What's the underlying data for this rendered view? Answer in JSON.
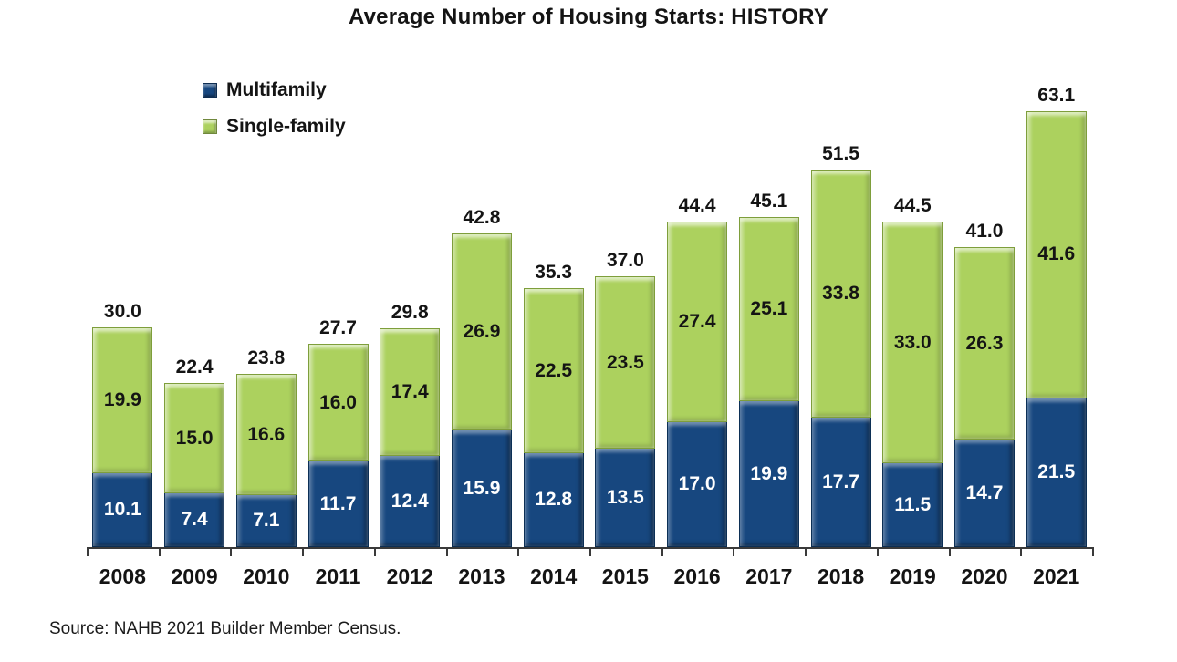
{
  "chart_data": {
    "type": "bar",
    "stacked": true,
    "title": "Average Number of Housing Starts: HISTORY",
    "categories": [
      "2008",
      "2009",
      "2010",
      "2011",
      "2012",
      "2013",
      "2014",
      "2015",
      "2016",
      "2017",
      "2018",
      "2019",
      "2020",
      "2021"
    ],
    "series": [
      {
        "name": "Multifamily",
        "color": "#17477F",
        "label_color": "#ffffff",
        "values": [
          10.1,
          7.4,
          7.1,
          11.7,
          12.4,
          15.9,
          12.8,
          13.5,
          17.0,
          19.9,
          17.7,
          11.5,
          14.7,
          21.5
        ]
      },
      {
        "name": "Single-family",
        "color": "#ACD15E",
        "label_color": "#141414",
        "values": [
          19.9,
          15.0,
          16.6,
          16.0,
          17.4,
          26.9,
          22.5,
          23.5,
          27.4,
          25.1,
          33.8,
          33.0,
          26.3,
          41.6
        ]
      }
    ],
    "totals": [
      30.0,
      22.4,
      23.8,
      27.7,
      29.8,
      42.8,
      35.3,
      37.0,
      44.4,
      45.1,
      51.5,
      44.5,
      41.0,
      63.1
    ],
    "ylim": [
      0,
      63.1
    ],
    "grid": false,
    "legend_position": "top-left",
    "xlabel": "",
    "ylabel": ""
  },
  "source": "Source: NAHB 2021 Builder Member Census."
}
